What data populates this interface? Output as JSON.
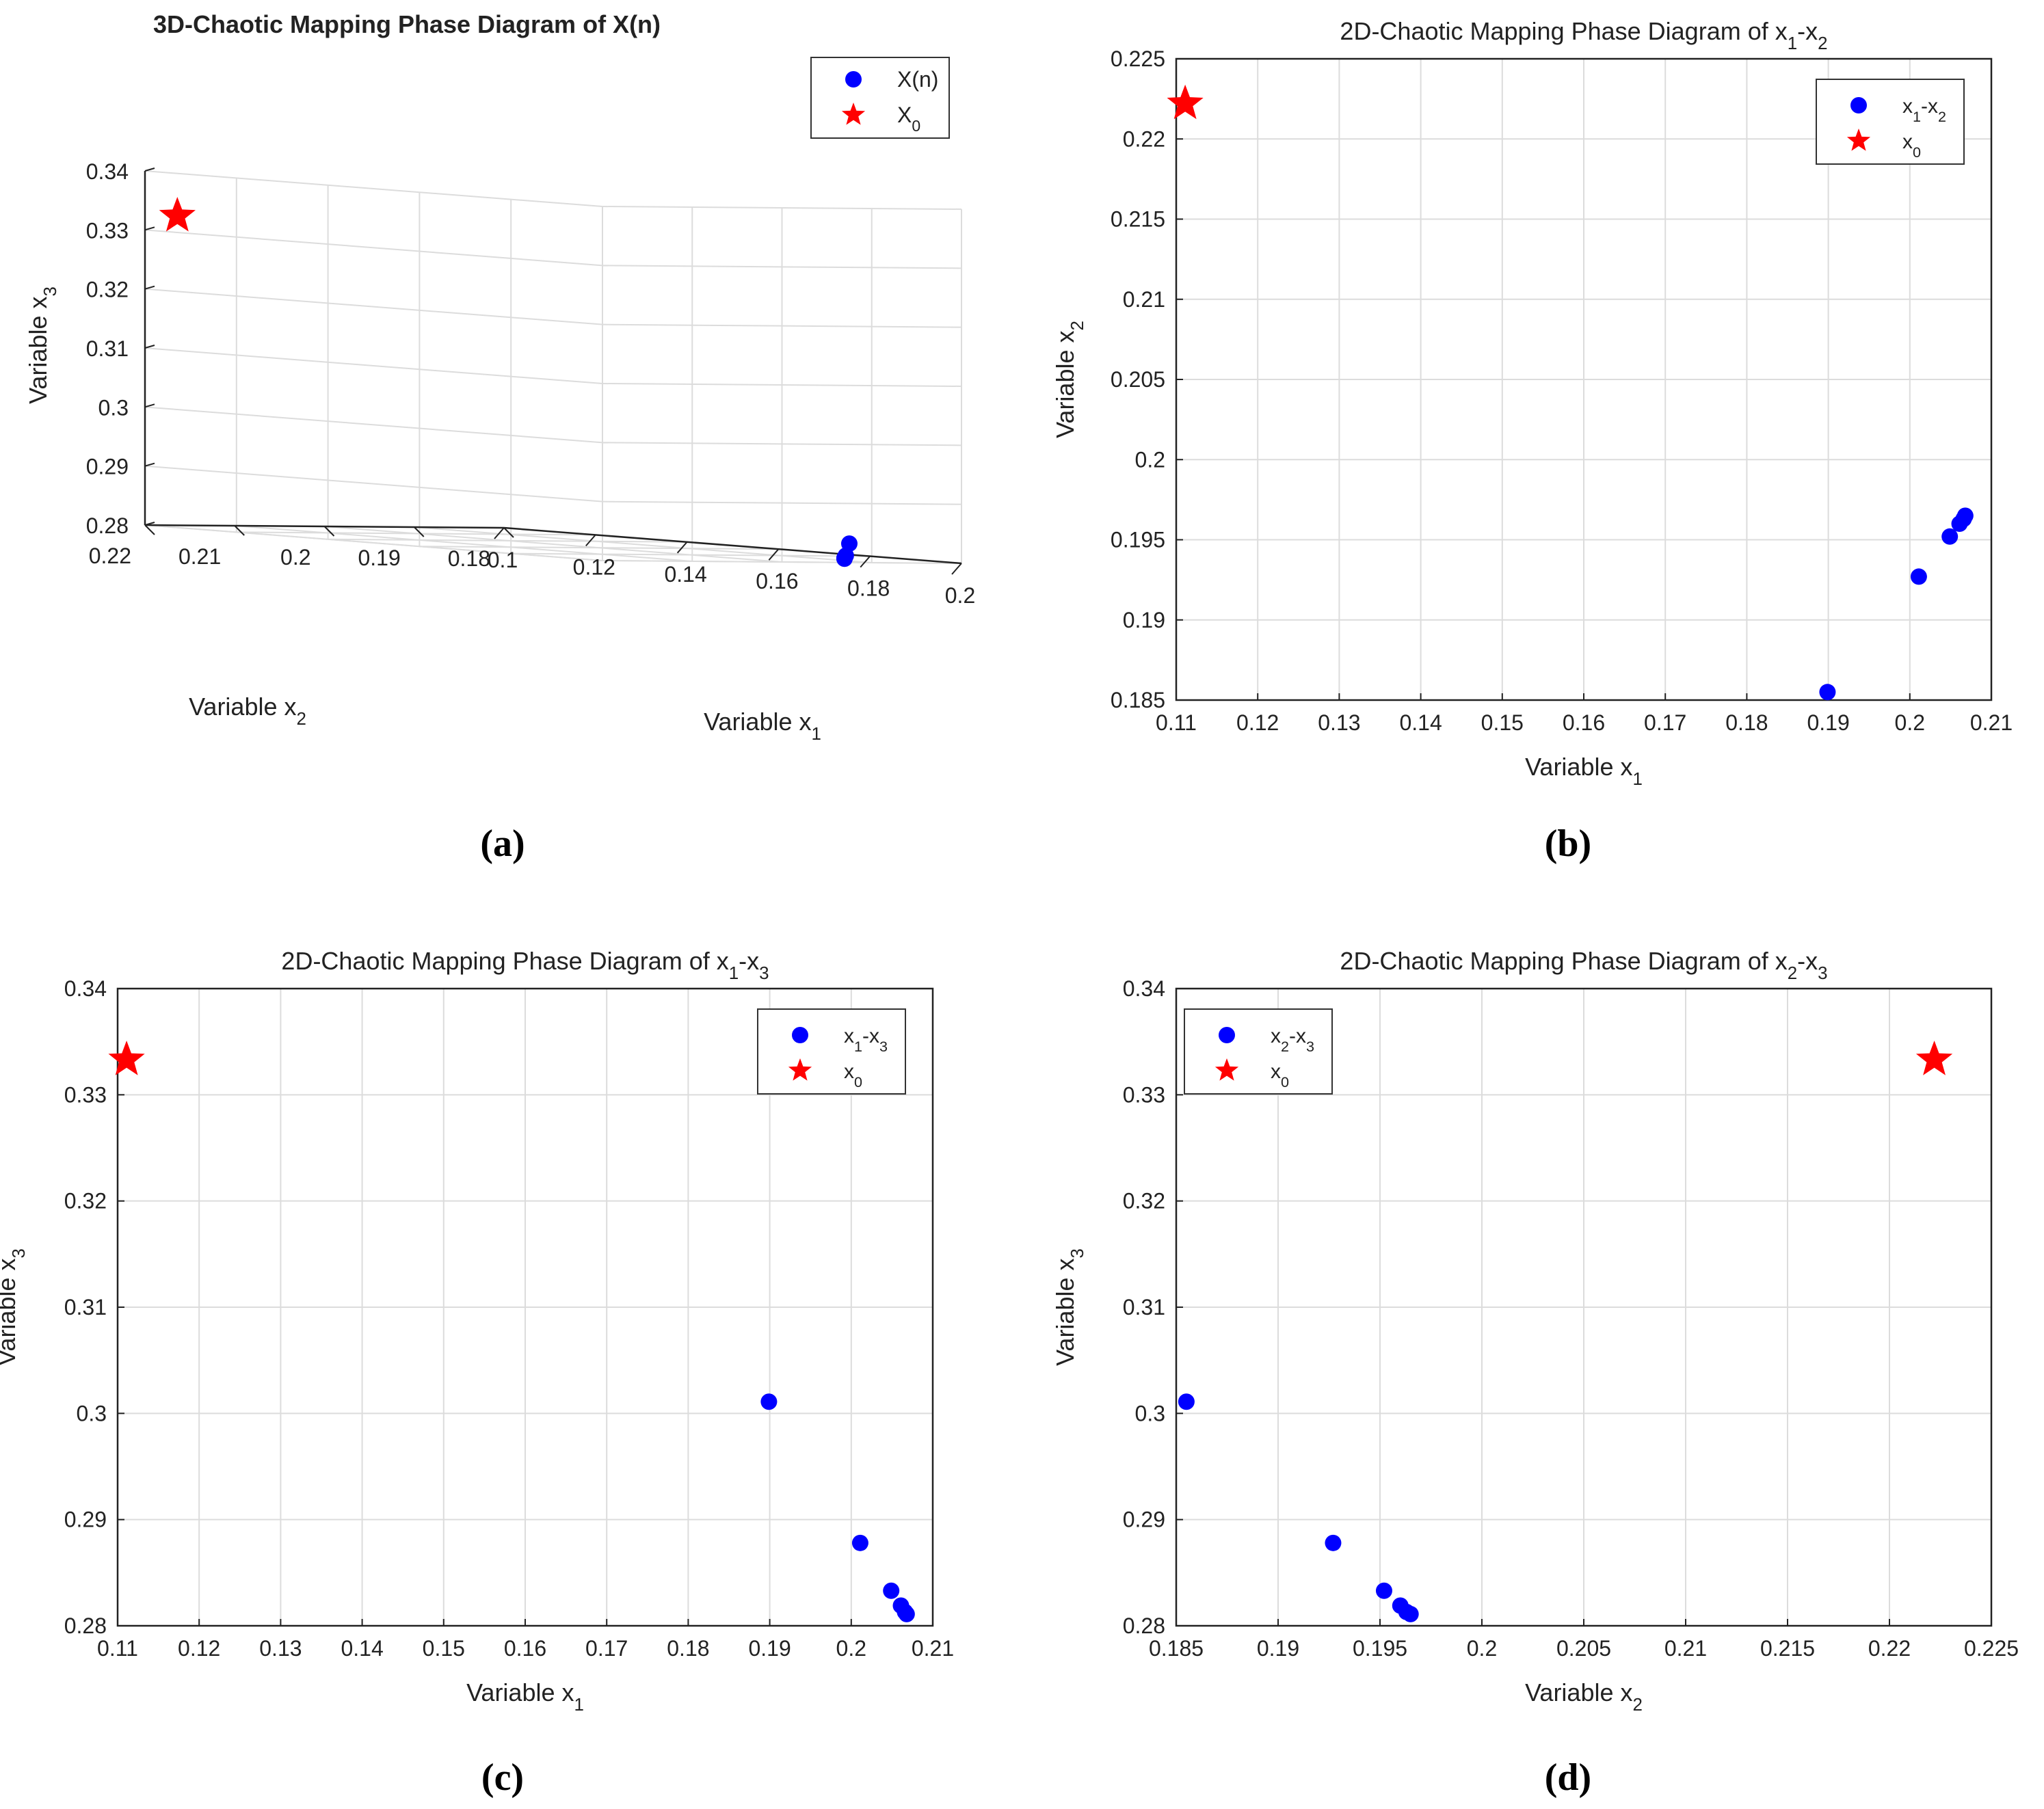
{
  "figure": {
    "captions": [
      "(a)",
      "(b)",
      "(c)",
      "(d)"
    ]
  },
  "colors": {
    "points": "#0000ff",
    "x0": "#ff0000",
    "grid": "#dcdcdc",
    "axis": "#222222",
    "text": "#222222"
  },
  "chart_data": [
    {
      "id": "a",
      "type": "scatter3d",
      "title": "3D-Chaotic Mapping Phase Diagram of X(n)",
      "xlabel": "Variable x",
      "xlabel_sub": "1",
      "ylabel": "Variable x",
      "ylabel_sub": "2",
      "zlabel": "Variable x",
      "zlabel_sub": "3",
      "xlim": [
        0.1,
        0.2
      ],
      "ylim": [
        0.18,
        0.22
      ],
      "zlim": [
        0.28,
        0.34
      ],
      "xticks": [
        "0.1",
        "0.12",
        "0.14",
        "0.16",
        "0.18",
        "0.2"
      ],
      "yticks": [
        "0.18",
        "0.19",
        "0.2",
        "0.21",
        "0.22"
      ],
      "zticks": [
        "0.28",
        "0.29",
        "0.3",
        "0.31",
        "0.32",
        "0.33",
        "0.34"
      ],
      "legend": {
        "position": "top-right",
        "entries": [
          {
            "label": "X(n)",
            "sub": "",
            "marker": "dot"
          },
          {
            "label": "X",
            "sub": "0",
            "marker": "star"
          }
        ]
      },
      "series": [
        {
          "name": "X(n)",
          "marker": "dot",
          "points": [
            [
              0.2055,
              0.1953,
              0.2835
            ],
            [
              0.2063,
              0.1961,
              0.2815
            ],
            [
              0.2066,
              0.1964,
              0.2811
            ],
            [
              0.2068,
              0.1965,
              0.281
            ]
          ]
        },
        {
          "name": "X0",
          "marker": "star",
          "points": [
            [
              0.111,
              0.222,
              0.333
            ]
          ]
        }
      ]
    },
    {
      "id": "b",
      "type": "scatter",
      "title": "2D-Chaotic Mapping Phase Diagram of x",
      "title_parts": [
        {
          "t": "2D-Chaotic Mapping Phase Diagram of x"
        },
        {
          "t": "1",
          "sub": true
        },
        {
          "t": "-x"
        },
        {
          "t": "2",
          "sub": true
        }
      ],
      "xlabel": "Variable x",
      "xlabel_sub": "1",
      "ylabel": "Variable x",
      "ylabel_sub": "2",
      "xlim": [
        0.11,
        0.21
      ],
      "ylim": [
        0.185,
        0.225
      ],
      "xticks": [
        "0.11",
        "0.12",
        "0.13",
        "0.14",
        "0.15",
        "0.16",
        "0.17",
        "0.18",
        "0.19",
        "0.2",
        "0.21"
      ],
      "yticks": [
        "0.185",
        "0.19",
        "0.195",
        "0.2",
        "0.205",
        "0.21",
        "0.215",
        "0.22",
        "0.225"
      ],
      "legend": {
        "position": "top-right",
        "entries": [
          {
            "label": "x",
            "sub": "1",
            "label2": "-x",
            "sub2": "2",
            "marker": "dot"
          },
          {
            "label": "x",
            "sub": "0",
            "marker": "star"
          }
        ]
      },
      "series": [
        {
          "name": "x1-x2",
          "marker": "dot",
          "points": [
            [
              0.1899,
              0.1855
            ],
            [
              0.2011,
              0.1927
            ],
            [
              0.2049,
              0.1952
            ],
            [
              0.2061,
              0.196
            ],
            [
              0.2066,
              0.1963
            ],
            [
              0.2068,
              0.1965
            ]
          ]
        },
        {
          "name": "x0",
          "marker": "star",
          "points": [
            [
              0.1111,
              0.2222
            ]
          ]
        }
      ]
    },
    {
      "id": "c",
      "type": "scatter",
      "title": "2D-Chaotic Mapping Phase Diagram of x",
      "title_parts": [
        {
          "t": "2D-Chaotic Mapping Phase Diagram of x"
        },
        {
          "t": "1",
          "sub": true
        },
        {
          "t": "-x"
        },
        {
          "t": "3",
          "sub": true
        }
      ],
      "xlabel": "Variable x",
      "xlabel_sub": "1",
      "ylabel": "Variable x",
      "ylabel_sub": "3",
      "xlim": [
        0.11,
        0.21
      ],
      "ylim": [
        0.28,
        0.34
      ],
      "xticks": [
        "0.11",
        "0.12",
        "0.13",
        "0.14",
        "0.15",
        "0.16",
        "0.17",
        "0.18",
        "0.19",
        "0.2",
        "0.21"
      ],
      "yticks": [
        "0.28",
        "0.29",
        "0.3",
        "0.31",
        "0.32",
        "0.33",
        "0.34"
      ],
      "legend": {
        "position": "top-right",
        "entries": [
          {
            "label": "x",
            "sub": "1",
            "label2": "-x",
            "sub2": "3",
            "marker": "dot"
          },
          {
            "label": "x",
            "sub": "0",
            "marker": "star"
          }
        ]
      },
      "series": [
        {
          "name": "x1-x3",
          "marker": "dot",
          "points": [
            [
              0.1899,
              0.3011
            ],
            [
              0.2011,
              0.2878
            ],
            [
              0.2049,
              0.2833
            ],
            [
              0.2061,
              0.2819
            ],
            [
              0.2066,
              0.2813
            ],
            [
              0.2068,
              0.2811
            ]
          ]
        },
        {
          "name": "x0",
          "marker": "star",
          "points": [
            [
              0.1111,
              0.3333
            ]
          ]
        }
      ]
    },
    {
      "id": "d",
      "type": "scatter",
      "title": "2D-Chaotic Mapping Phase Diagram of x",
      "title_parts": [
        {
          "t": "2D-Chaotic Mapping Phase Diagram of x"
        },
        {
          "t": "2",
          "sub": true
        },
        {
          "t": "-x"
        },
        {
          "t": "3",
          "sub": true
        }
      ],
      "xlabel": "Variable x",
      "xlabel_sub": "2",
      "ylabel": "Variable x",
      "ylabel_sub": "3",
      "xlim": [
        0.185,
        0.225
      ],
      "ylim": [
        0.28,
        0.34
      ],
      "xticks": [
        "0.185",
        "0.19",
        "0.195",
        "0.2",
        "0.205",
        "0.21",
        "0.215",
        "0.22",
        "0.225"
      ],
      "yticks": [
        "0.28",
        "0.29",
        "0.3",
        "0.31",
        "0.32",
        "0.33",
        "0.34"
      ],
      "legend": {
        "position": "top-left",
        "entries": [
          {
            "label": "x",
            "sub": "2",
            "label2": "-x",
            "sub2": "3",
            "marker": "dot"
          },
          {
            "label": "x",
            "sub": "0",
            "marker": "star"
          }
        ]
      },
      "series": [
        {
          "name": "x2-x3",
          "marker": "dot",
          "points": [
            [
              0.1855,
              0.3011
            ],
            [
              0.1927,
              0.2878
            ],
            [
              0.1952,
              0.2833
            ],
            [
              0.196,
              0.2819
            ],
            [
              0.1963,
              0.2813
            ],
            [
              0.1965,
              0.2811
            ]
          ]
        },
        {
          "name": "x0",
          "marker": "star",
          "points": [
            [
              0.2222,
              0.3333
            ]
          ]
        }
      ]
    }
  ]
}
